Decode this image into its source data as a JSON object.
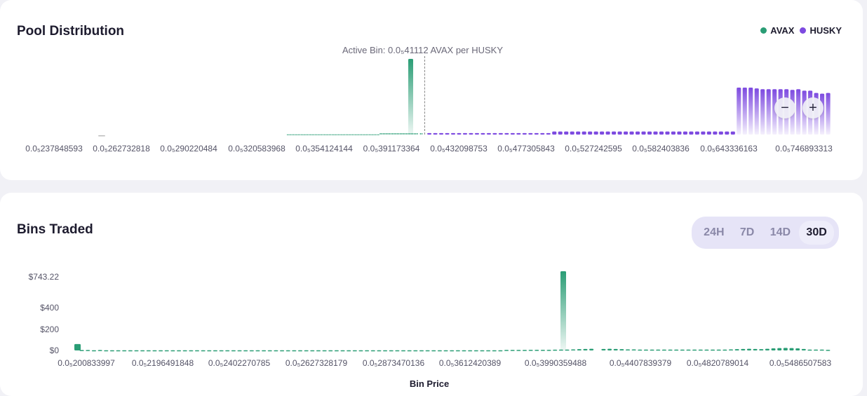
{
  "pool": {
    "title": "Pool Distribution",
    "legend": [
      {
        "label": "AVAX",
        "color": "#2a9d75"
      },
      {
        "label": "HUSKY",
        "color": "#7d4ae0"
      }
    ],
    "active_bin": "Active Bin: 0.0₅41112 AVAX per HUSKY",
    "x_ticks": [
      "0.0₅237848593",
      "0.0₅262732818",
      "0.0₅290220484",
      "0.0₅320583968",
      "0.0₅354124144",
      "0.0₅391173364",
      "0.0₅432098753",
      "0.0₅477305843",
      "0.0₅527242595",
      "0.0₅582403836",
      "0.0₅643336163",
      "0.0₅746893313"
    ],
    "zoom_out": "−",
    "zoom_in": "+"
  },
  "bins": {
    "title": "Bins Traded",
    "ranges": [
      "24H",
      "7D",
      "14D",
      "30D"
    ],
    "selected_range": "30D",
    "y_ticks": [
      "$743.22",
      "$400",
      "$200",
      "$0"
    ],
    "x_ticks": [
      "0.0₅200833997",
      "0.0₅2196491848",
      "0.0₅2402270785",
      "0.0₅2627328179",
      "0.0₅2873470136",
      "0.0₅3612420389",
      "0.0₅3990359488",
      "0.0₅4407839379",
      "0.0₅4820789014",
      "0.0₅5486507583"
    ],
    "x_title": "Bin Price"
  },
  "chart_data": [
    {
      "type": "bar",
      "title": "Pool Distribution",
      "series": [
        {
          "name": "AVAX",
          "color": "#2a9d75",
          "values": [
            0.5,
            0.5,
            0.5,
            0.5,
            0.5,
            0.5,
            0.5,
            0.5,
            0.5,
            0.5,
            0.5,
            0.5,
            0.5,
            0.5,
            0.5,
            0.5,
            0.5,
            0.5,
            0.5,
            0.5,
            0.5,
            0.5,
            0.5,
            0.5,
            0.5,
            0.5,
            0.5,
            0.5,
            0.5,
            0.5,
            0.5,
            0.5,
            0.5,
            0.5,
            0.5,
            0.5,
            0.5,
            0.5,
            0.5,
            0.5,
            0.5,
            0.5,
            0.5,
            0.5,
            0.5,
            0.5,
            0.5,
            0.5,
            0.5,
            0.5,
            0.5,
            0.5,
            0.5,
            0.5,
            0.5,
            0.5,
            0.5,
            0.5,
            0.5,
            0.5,
            2,
            2,
            2,
            2,
            2,
            2,
            2,
            2,
            2,
            2,
            2,
            2,
            2,
            2,
            2,
            2,
            2,
            2,
            2,
            2,
            2,
            2,
            2,
            2,
            2,
            100,
            2,
            2
          ]
        },
        {
          "name": "HUSKY",
          "color": "#7d4ae0",
          "values": [
            2,
            2,
            2,
            2,
            2,
            2,
            2,
            2,
            2,
            2,
            2,
            2,
            2,
            2,
            2,
            2,
            2,
            2,
            2,
            2,
            2,
            4,
            4,
            4,
            4,
            4,
            4,
            4,
            4,
            4,
            4,
            4,
            4,
            4,
            4,
            4,
            4,
            4,
            4,
            4,
            4,
            4,
            4,
            4,
            4,
            4,
            4,
            4,
            4,
            4,
            4,
            4,
            62,
            62,
            62,
            61,
            60,
            60,
            60,
            60,
            60,
            59,
            60,
            58,
            58,
            55,
            54,
            55
          ]
        }
      ]
    },
    {
      "type": "bar",
      "title": "Bins Traded",
      "xlabel": "Bin Price",
      "ylim": [
        0,
        743.22
      ],
      "series": [
        {
          "name": "Volume",
          "color": "#2a9d75",
          "values": [
            60,
            4,
            4,
            2,
            4,
            2,
            2,
            2,
            2,
            2,
            2,
            2,
            2,
            2,
            2,
            2,
            2,
            2,
            2,
            2,
            2,
            2,
            2,
            2,
            2,
            2,
            2,
            2,
            2,
            2,
            2,
            2,
            2,
            2,
            2,
            2,
            2,
            2,
            2,
            2,
            2,
            2,
            2,
            2,
            2,
            2,
            2,
            2,
            2,
            2,
            2,
            2,
            2,
            2,
            2,
            2,
            2,
            2,
            2,
            2,
            2,
            2,
            2,
            2,
            2,
            2,
            2,
            2,
            2,
            2,
            2,
            5,
            5,
            5,
            5,
            6,
            6,
            6,
            6,
            7,
            8,
            8,
            10,
            12,
            14,
            16,
            743.22,
            14,
            16,
            14,
            12,
            10,
            10,
            8,
            8,
            8,
            8,
            8,
            8,
            8,
            8,
            8,
            8,
            8,
            8,
            8,
            8,
            8,
            10,
            12,
            14,
            16,
            14,
            12,
            16,
            20,
            22,
            24,
            22,
            20,
            14,
            8,
            8,
            8,
            6
          ]
        }
      ]
    }
  ]
}
